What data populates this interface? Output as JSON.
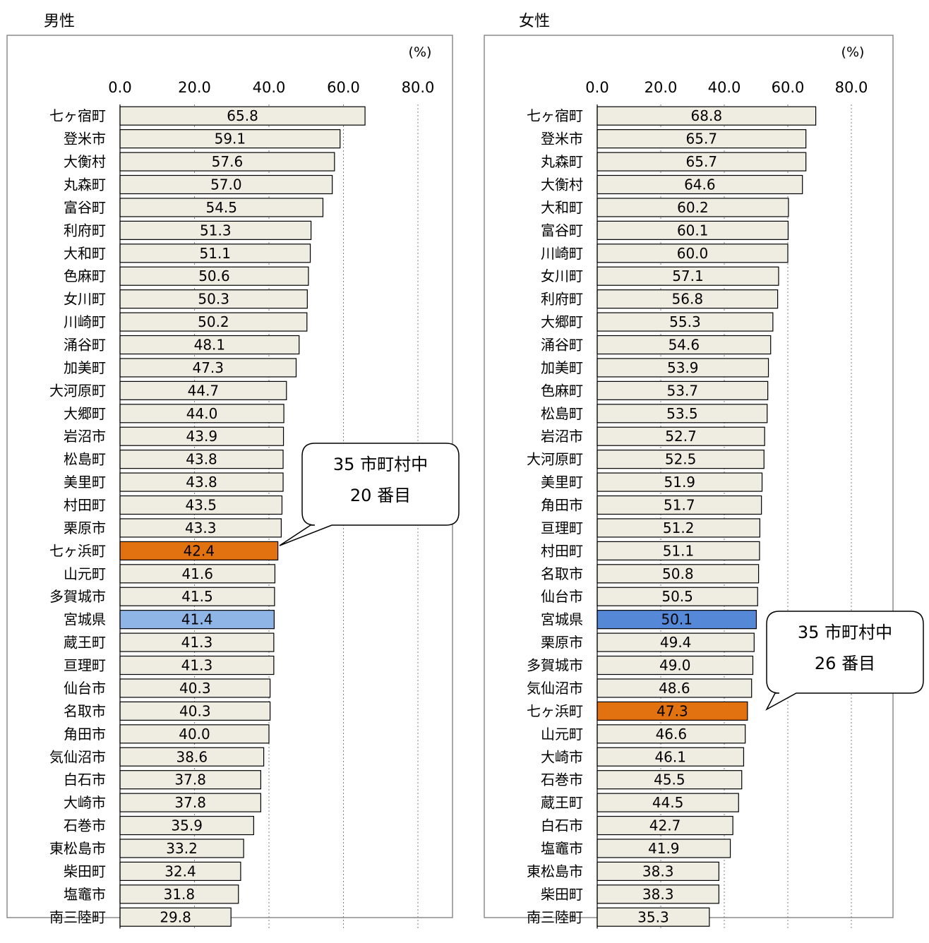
{
  "colors": {
    "bar_default": "#efece1",
    "bar_highlight": "#e2710f",
    "bar_prefecture_male": "#8fb5e7",
    "bar_prefecture_female": "#5588d6"
  },
  "chart_data": [
    {
      "type": "bar",
      "orientation": "horizontal",
      "title": "男性",
      "unit": "(%)",
      "xlim": [
        0,
        80
      ],
      "ticks": [
        "0.0",
        "20.0",
        "40.0",
        "60.0",
        "80.0"
      ],
      "grid": true,
      "highlight_category": "七ヶ浜町",
      "reference_category": "宮城県",
      "categories": [
        "七ヶ宿町",
        "登米市",
        "大衡村",
        "丸森町",
        "富谷町",
        "利府町",
        "大和町",
        "色麻町",
        "女川町",
        "川崎町",
        "涌谷町",
        "加美町",
        "大河原町",
        "大郷町",
        "岩沼市",
        "松島町",
        "美里町",
        "村田町",
        "栗原市",
        "七ヶ浜町",
        "山元町",
        "多賀城市",
        "宮城県",
        "蔵王町",
        "亘理町",
        "仙台市",
        "名取市",
        "角田市",
        "気仙沼市",
        "白石市",
        "大崎市",
        "石巻市",
        "東松島市",
        "柴田町",
        "塩竈市",
        "南三陸町"
      ],
      "values": [
        65.8,
        59.1,
        57.6,
        57.0,
        54.5,
        51.3,
        51.1,
        50.6,
        50.3,
        50.2,
        48.1,
        47.3,
        44.7,
        44.0,
        43.9,
        43.8,
        43.8,
        43.5,
        43.3,
        42.4,
        41.6,
        41.5,
        41.4,
        41.3,
        41.3,
        40.3,
        40.3,
        40.0,
        38.6,
        37.8,
        37.8,
        35.9,
        33.2,
        32.4,
        31.8,
        29.8
      ],
      "labels": [
        "65.8",
        "59.1",
        "57.6",
        "57.0",
        "54.5",
        "51.3",
        "51.1",
        "50.6",
        "50.3",
        "50.2",
        "48.1",
        "47.3",
        "44.7",
        "44.0",
        "43.9",
        "43.8",
        "43.8",
        "43.5",
        "43.3",
        "42.4",
        "41.6",
        "41.5",
        "41.4",
        "41.3",
        "41.3",
        "40.3",
        "40.3",
        "40.0",
        "38.6",
        "37.8",
        "37.8",
        "35.9",
        "33.2",
        "32.4",
        "31.8",
        "29.8"
      ],
      "callout": [
        "35 市町村中",
        "20 番目"
      ]
    },
    {
      "type": "bar",
      "orientation": "horizontal",
      "title": "女性",
      "unit": "(%)",
      "xlim": [
        0,
        80
      ],
      "ticks": [
        "0.0",
        "20.0",
        "40.0",
        "60.0",
        "80.0"
      ],
      "grid": true,
      "highlight_category": "七ヶ浜町",
      "reference_category": "宮城県",
      "categories": [
        "七ヶ宿町",
        "登米市",
        "丸森町",
        "大衡村",
        "大和町",
        "富谷町",
        "川崎町",
        "女川町",
        "利府町",
        "大郷町",
        "涌谷町",
        "加美町",
        "色麻町",
        "松島町",
        "岩沼市",
        "大河原町",
        "美里町",
        "角田市",
        "亘理町",
        "村田町",
        "名取市",
        "仙台市",
        "宮城県",
        "栗原市",
        "多賀城市",
        "気仙沼市",
        "七ヶ浜町",
        "山元町",
        "大崎市",
        "石巻市",
        "蔵王町",
        "白石市",
        "塩竈市",
        "東松島市",
        "柴田町",
        "南三陸町"
      ],
      "values": [
        68.8,
        65.7,
        65.7,
        64.6,
        60.2,
        60.1,
        60.0,
        57.1,
        56.8,
        55.3,
        54.6,
        53.9,
        53.7,
        53.5,
        52.7,
        52.5,
        51.9,
        51.7,
        51.2,
        51.1,
        50.8,
        50.5,
        50.1,
        49.4,
        49.0,
        48.6,
        47.3,
        46.6,
        46.1,
        45.5,
        44.5,
        42.7,
        41.9,
        38.3,
        38.3,
        35.3
      ],
      "labels": [
        "68.8",
        "65.7",
        "65.7",
        "64.6",
        "60.2",
        "60.1",
        "60.0",
        "57.1",
        "56.8",
        "55.3",
        "54.6",
        "53.9",
        "53.7",
        "53.5",
        "52.7",
        "52.5",
        "51.9",
        "51.7",
        "51.2",
        "51.1",
        "50.8",
        "50.5",
        "50.1",
        "49.4",
        "49.0",
        "48.6",
        "47.3",
        "46.6",
        "46.1",
        "45.5",
        "44.5",
        "42.7",
        "41.9",
        "38.3",
        "38.3",
        "35.3"
      ],
      "callout": [
        "35 市町村中",
        "26 番目"
      ]
    }
  ]
}
